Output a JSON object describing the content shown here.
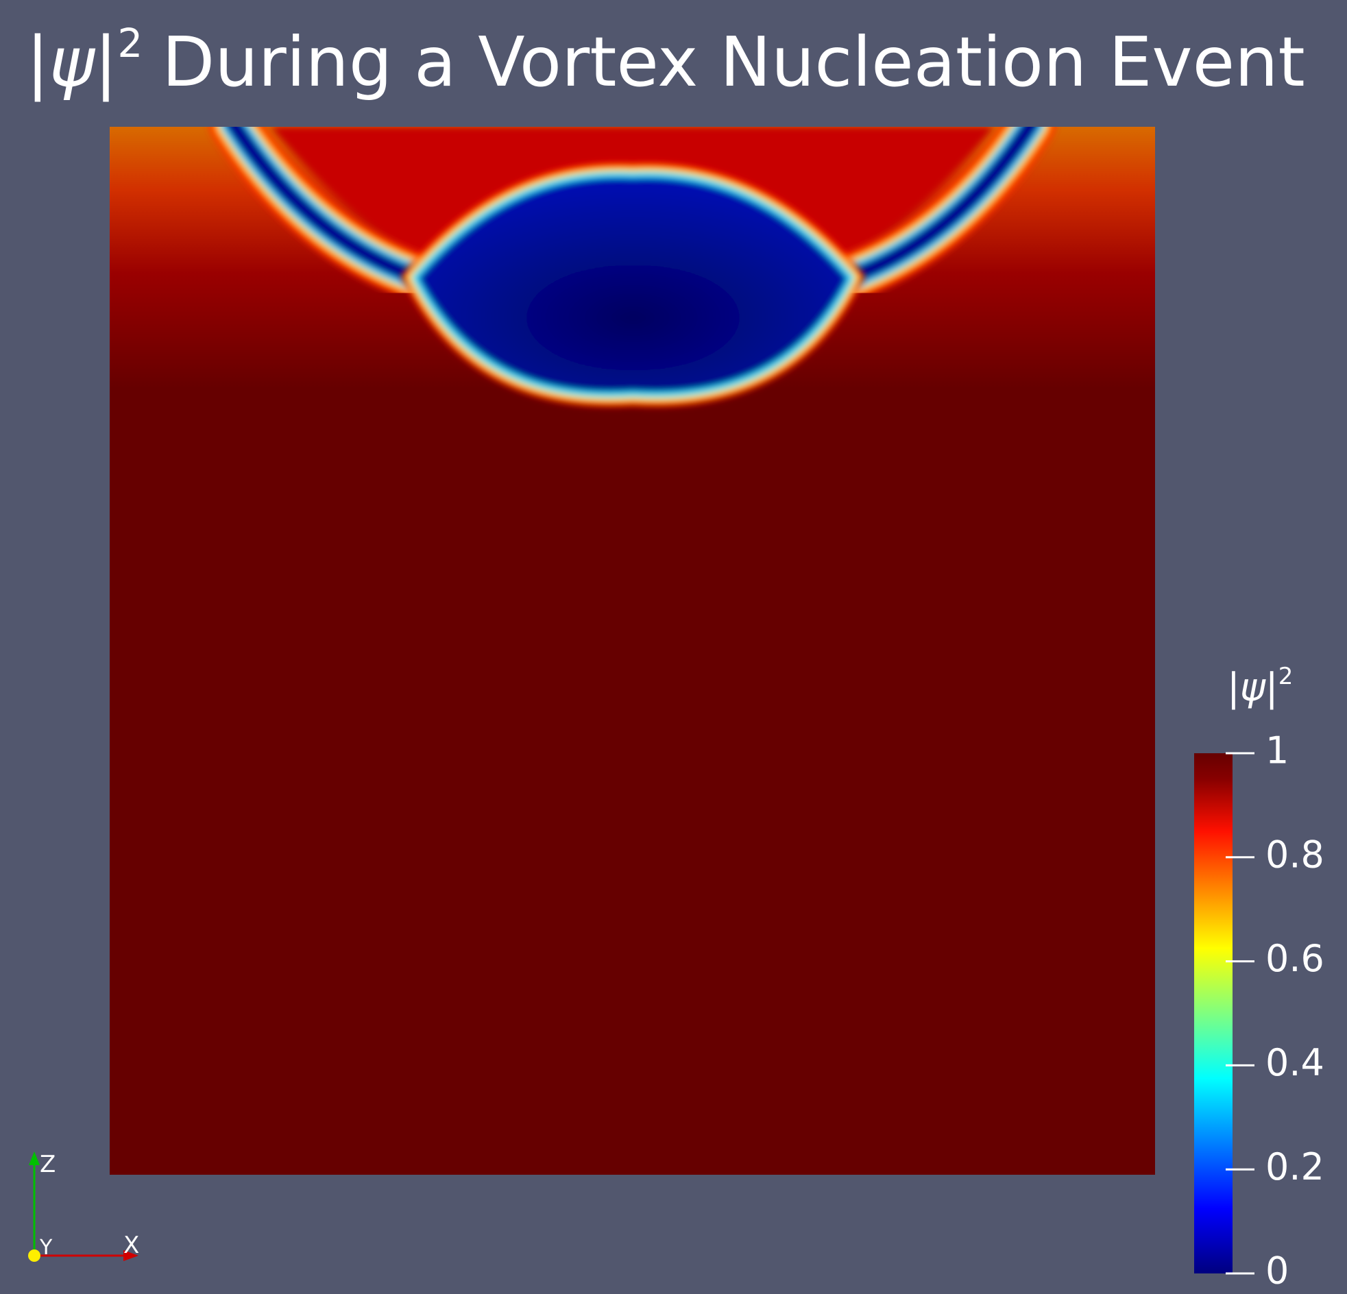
{
  "title": {
    "symbol": "|ψ|",
    "exponent": "2",
    "text": "During a Vortex Nucleation Event"
  },
  "colorbar": {
    "symbol": "|ψ|",
    "exponent": "2",
    "lim": [
      0,
      1
    ],
    "ticks": [
      0,
      0.2,
      0.4,
      0.6,
      0.8,
      1
    ]
  },
  "axes_triad": {
    "x": "X",
    "y": "Y",
    "z": "Z"
  }
}
